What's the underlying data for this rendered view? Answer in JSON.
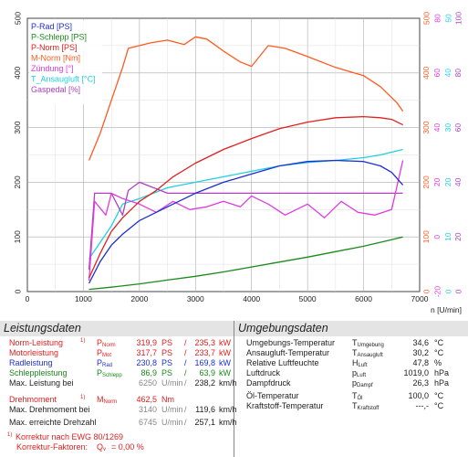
{
  "chart_data": {
    "type": "line",
    "xlabel": "n [U/min]",
    "xlim": [
      0,
      7000
    ],
    "xticks": [
      0,
      1000,
      2000,
      3000,
      4000,
      5000,
      6000,
      7000
    ],
    "ylim": [
      0,
      500
    ],
    "yticks_left": [
      0,
      100,
      200,
      300,
      400,
      500
    ],
    "right_axes": [
      {
        "color": "#ff5a1e",
        "ticks": [
          "0",
          "100",
          "200",
          "300",
          "400",
          "500"
        ]
      },
      {
        "color": "#e03be0",
        "ticks": [
          "-20",
          "0",
          "20",
          "40",
          "60",
          "80"
        ]
      },
      {
        "color": "#20d0e0",
        "ticks": [
          "0",
          "10",
          "20",
          "30",
          "40",
          "50"
        ]
      },
      {
        "color": "#b040c0",
        "ticks": [
          "0",
          "20",
          "40",
          "60",
          "80",
          "100"
        ]
      }
    ],
    "grid": true,
    "legend_position": "top-left",
    "series": [
      {
        "name": "P-Rad [PS]",
        "color": "#1e2fd0",
        "x": [
          1100,
          1300,
          1500,
          1700,
          2000,
          2300,
          2600,
          3000,
          3500,
          4000,
          4500,
          5000,
          5500,
          6000,
          6300,
          6500,
          6700
        ],
        "y": [
          15,
          55,
          85,
          105,
          130,
          145,
          160,
          180,
          200,
          215,
          230,
          238,
          240,
          238,
          230,
          218,
          195
        ]
      },
      {
        "name": "P-Schlepp [PS]",
        "color": "#1a8a1a",
        "x": [
          1100,
          1500,
          2000,
          2500,
          3000,
          3500,
          4000,
          4500,
          5000,
          5500,
          6000,
          6500,
          6700
        ],
        "y": [
          4,
          8,
          14,
          21,
          28,
          36,
          45,
          54,
          63,
          73,
          83,
          95,
          100
        ]
      },
      {
        "name": "P-Norm [PS]",
        "color": "#e02020",
        "x": [
          1100,
          1300,
          1500,
          1700,
          2000,
          2300,
          2600,
          3000,
          3500,
          4000,
          4500,
          5000,
          5500,
          6000,
          6300,
          6500,
          6700
        ],
        "y": [
          25,
          70,
          110,
          135,
          165,
          185,
          210,
          235,
          260,
          280,
          298,
          310,
          318,
          320,
          318,
          315,
          305
        ]
      },
      {
        "name": "M-Norm [Nm]",
        "color": "#ff5a1e",
        "x": [
          1100,
          1300,
          1500,
          1700,
          1800,
          2000,
          2200,
          2500,
          2800,
          3000,
          3200,
          3500,
          3800,
          4000,
          4300,
          4600,
          5000,
          5500,
          6000,
          6300,
          6600,
          6700
        ],
        "y": [
          240,
          290,
          350,
          410,
          445,
          450,
          455,
          460,
          452,
          466,
          462,
          440,
          420,
          412,
          450,
          445,
          430,
          410,
          395,
          375,
          345,
          330
        ]
      },
      {
        "name": "Zündung [°]",
        "color": "#e03be0",
        "x": [
          1100,
          1200,
          1400,
          1500,
          1700,
          2000,
          2300,
          2600,
          2900,
          3200,
          3500,
          3800,
          4000,
          4300,
          4600,
          5000,
          5300,
          5600,
          5900,
          6200,
          6500,
          6700
        ],
        "y": [
          20,
          165,
          140,
          180,
          170,
          160,
          145,
          165,
          150,
          155,
          165,
          155,
          175,
          160,
          140,
          160,
          135,
          165,
          145,
          140,
          150,
          240
        ]
      },
      {
        "name": "T_Ansaugluft [°C]",
        "color": "#20d0e0",
        "x": [
          1100,
          1500,
          1700,
          2000,
          2500,
          3000,
          3500,
          4000,
          4500,
          5000,
          5500,
          6000,
          6300,
          6700
        ],
        "y": [
          60,
          120,
          160,
          170,
          190,
          200,
          210,
          220,
          230,
          236,
          240,
          245,
          250,
          260
        ]
      },
      {
        "name": "Gaspedal [%]",
        "color": "#b040c0",
        "x": [
          1100,
          1200,
          1300,
          1500,
          1700,
          1800,
          2000,
          2500,
          3000,
          3500,
          4000,
          4500,
          5000,
          5500,
          6000,
          6500,
          6700
        ],
        "y": [
          40,
          180,
          180,
          180,
          140,
          185,
          200,
          180,
          180,
          180,
          180,
          180,
          180,
          180,
          180,
          180,
          180
        ]
      }
    ]
  },
  "panel": {
    "left_title": "Leistungsdaten",
    "right_title": "Umgebungsdaten",
    "left_rows": [
      {
        "label": "Norm-Leistung",
        "footnote": "1)",
        "sym": "P",
        "sub": "Norm",
        "v1": "319,9",
        "u1": "PS",
        "sep": "/",
        "v2": "235,3",
        "u2": "kW",
        "color": "red"
      },
      {
        "label": "Motorleistung",
        "sym": "P",
        "sub": "Mot",
        "v1": "317,7",
        "u1": "PS",
        "sep": "/",
        "v2": "233,7",
        "u2": "kW",
        "color": "red"
      },
      {
        "label": "Radleistung",
        "sym": "P",
        "sub": "Rad",
        "v1": "230,8",
        "u1": "PS",
        "sep": "/",
        "v2": "169,8",
        "u2": "kW",
        "color": "blu"
      },
      {
        "label": "Schleppleistung",
        "sym": "P",
        "sub": "Schlepp",
        "v1": "86,9",
        "u1": "PS",
        "sep": "/",
        "v2": "63,9",
        "u2": "kW",
        "color": "grn"
      },
      {
        "label": "Max. Leistung bei",
        "v1": "6250",
        "u1": "U/min",
        "sep": "/",
        "v2": "238,2",
        "u2": "km/h",
        "color": "dark"
      },
      {
        "label": "Drehmoment",
        "footnote": "1)",
        "sym": "M",
        "sub": "Norm",
        "v1": "462,5",
        "u1": "Nm",
        "color": "red"
      },
      {
        "label": "Max. Drehmoment bei",
        "v1": "3140",
        "u1": "U/min",
        "sep": "/",
        "v2": "119,6",
        "u2": "km/h",
        "color": "dark"
      },
      {
        "label": "Max. erreichte Drehzahl",
        "v1": "6745",
        "u1": "U/min",
        "sep": "/",
        "v2": "257,1",
        "u2": "km/h",
        "color": "dark"
      }
    ],
    "note1": "Korrektur nach EWG 80/1269",
    "note1_prefix": "1)",
    "note2_label": "Korrektur-Faktoren:",
    "note2_sym": "Q",
    "note2_sub": "v",
    "note2_value": "=   0,00 %",
    "right_rows": [
      {
        "label": "Umgebungs-Temperatur",
        "sym": "T",
        "sub": "Umgebung",
        "value": "34,6",
        "unit": "°C"
      },
      {
        "label": "Ansaugluft-Temperatur",
        "sym": "T",
        "sub": "Ansaugluft",
        "value": "30,2",
        "unit": "°C"
      },
      {
        "label": "Relative Luftfeuchte",
        "sym": "H",
        "sub": "Luft",
        "value": "47,8",
        "unit": "%"
      },
      {
        "label": "Luftdruck",
        "sym": "p",
        "sub": "Luft",
        "value": "1019,0",
        "unit": "hPa"
      },
      {
        "label": "Dampfdruck",
        "sym": "p",
        "sub": "Dampf",
        "value": "26,3",
        "unit": "hPa"
      },
      {
        "label": "Öl-Temperatur",
        "sym": "T",
        "sub": "Öl",
        "value": "100,0",
        "unit": "°C"
      },
      {
        "label": "Kraftstoff-Temperatur",
        "sym": "T",
        "sub": "Kraftstoff",
        "value": "---,-",
        "unit": "°C"
      }
    ]
  }
}
